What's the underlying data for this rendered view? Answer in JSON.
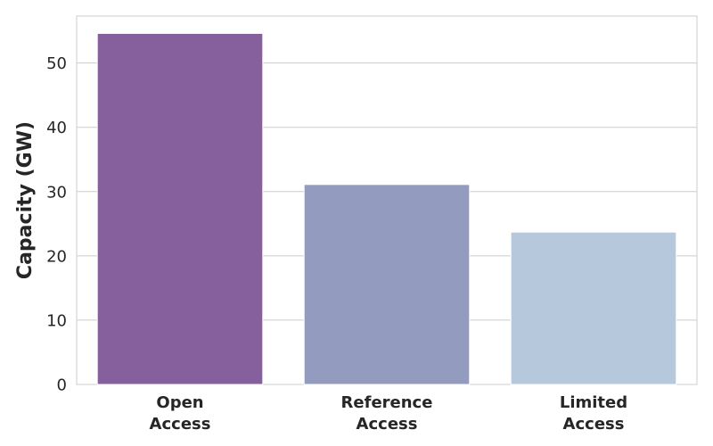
{
  "chart_data": {
    "type": "bar",
    "categories": [
      [
        "Open",
        "Access"
      ],
      [
        "Reference",
        "Access"
      ],
      [
        "Limited",
        "Access"
      ]
    ],
    "values": [
      54.6,
      31.1,
      23.7
    ],
    "colors": [
      "#85609c",
      "#939bbf",
      "#b6c9dc"
    ],
    "xlabel": "",
    "ylabel": "Capacity (GW)",
    "ylim": [
      0,
      57.3
    ],
    "yticks": [
      0,
      10,
      20,
      30,
      40,
      50
    ],
    "grid": true
  }
}
